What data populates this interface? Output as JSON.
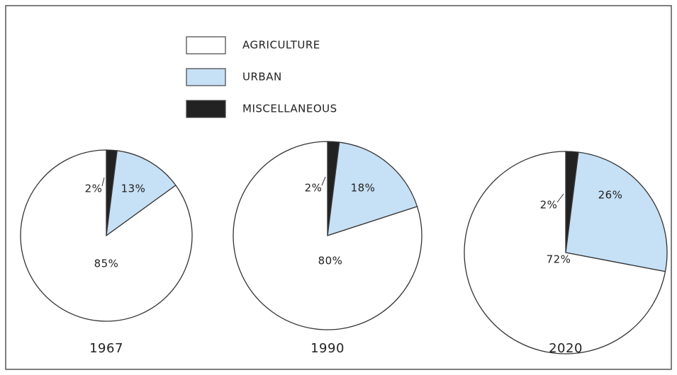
{
  "chart_data": [
    {
      "type": "pie",
      "title": "1967",
      "categories": [
        "AGRICULTURE",
        "URBAN",
        "MISCELLANEOUS"
      ],
      "values": [
        85,
        13,
        2
      ],
      "value_labels": [
        "85%",
        "13%",
        "2%"
      ],
      "colors": [
        "#ffffff",
        "#c6e0f5",
        "#222222"
      ]
    },
    {
      "type": "pie",
      "title": "1990",
      "categories": [
        "AGRICULTURE",
        "URBAN",
        "MISCELLANEOUS"
      ],
      "values": [
        80,
        18,
        2
      ],
      "value_labels": [
        "80%",
        "18%",
        "2%"
      ],
      "colors": [
        "#ffffff",
        "#c6e0f5",
        "#222222"
      ]
    },
    {
      "type": "pie",
      "title": "2020",
      "categories": [
        "AGRICULTURE",
        "URBAN",
        "MISCELLANEOUS"
      ],
      "values": [
        72,
        26,
        2
      ],
      "value_labels": [
        "72%",
        "26%",
        "2%"
      ],
      "colors": [
        "#ffffff",
        "#c6e0f5",
        "#222222"
      ]
    }
  ]
}
